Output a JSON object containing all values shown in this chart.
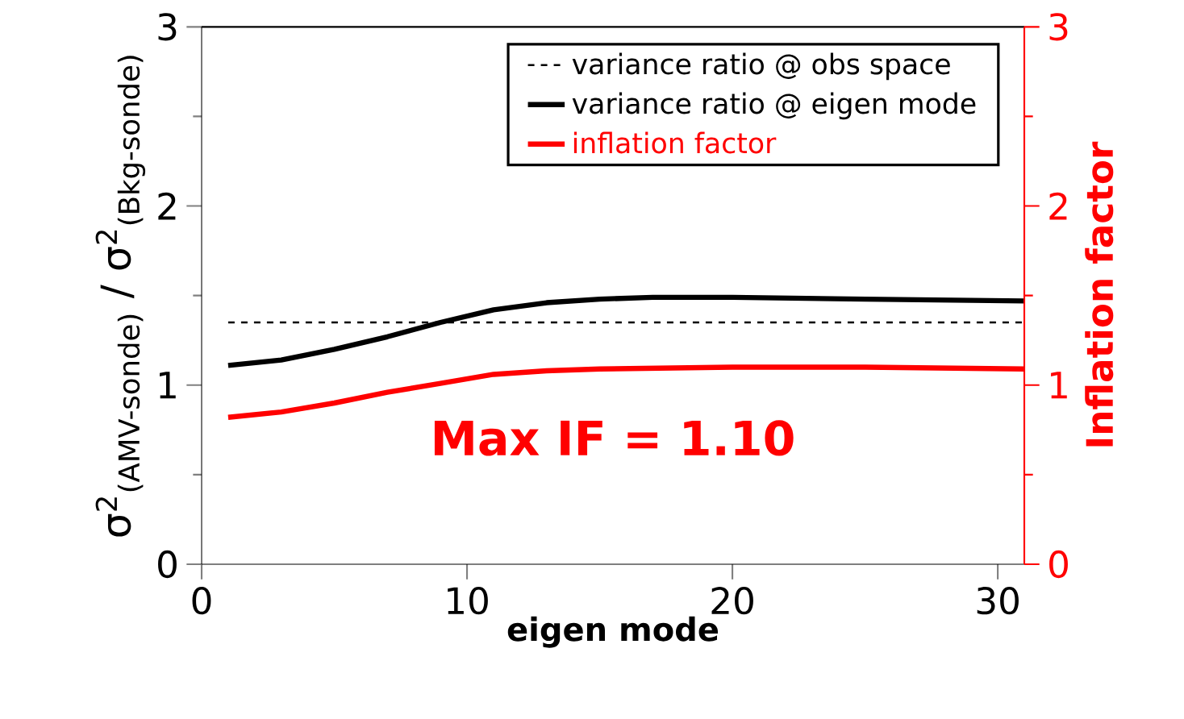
{
  "chart_data": {
    "type": "line",
    "xlabel": "eigen mode",
    "ylabel": "σ$^{2}$$_{(AMV-sonde)}$ / σ$^{2}$$_{(Bkg-sonde)}$",
    "y2label": "Inflation factor",
    "series": [
      {
        "name": "variance ratio @ obs space",
        "color": "#000000",
        "line_style": "dashed",
        "x": [
          1,
          31
        ],
        "values": [
          1.35,
          1.35
        ]
      },
      {
        "name": "variance ratio @ eigen mode",
        "color": "#000000",
        "line_style": "solid",
        "x": [
          1,
          3,
          5,
          7,
          9,
          11,
          13,
          15,
          17,
          20,
          25,
          31
        ],
        "values": [
          1.11,
          1.14,
          1.2,
          1.27,
          1.35,
          1.42,
          1.46,
          1.48,
          1.49,
          1.49,
          1.48,
          1.47
        ]
      },
      {
        "name": "inflation factor",
        "color": "#ff0000",
        "line_style": "solid",
        "axis": "y2",
        "x": [
          1,
          3,
          5,
          7,
          9,
          11,
          13,
          15,
          20,
          25,
          31
        ],
        "values": [
          0.82,
          0.85,
          0.9,
          0.96,
          1.01,
          1.06,
          1.08,
          1.09,
          1.1,
          1.1,
          1.09
        ]
      }
    ],
    "xlim": [
      0,
      31
    ],
    "xticks": [
      0,
      10,
      20,
      30
    ],
    "ylim": [
      0,
      3
    ],
    "yticks": [
      0,
      1,
      2,
      3
    ],
    "y2lim": [
      0,
      3
    ],
    "y2ticks": [
      0,
      1,
      2,
      3
    ],
    "legend": "top right",
    "grid": false,
    "annotations": [
      "Max IF = 1.10"
    ]
  }
}
